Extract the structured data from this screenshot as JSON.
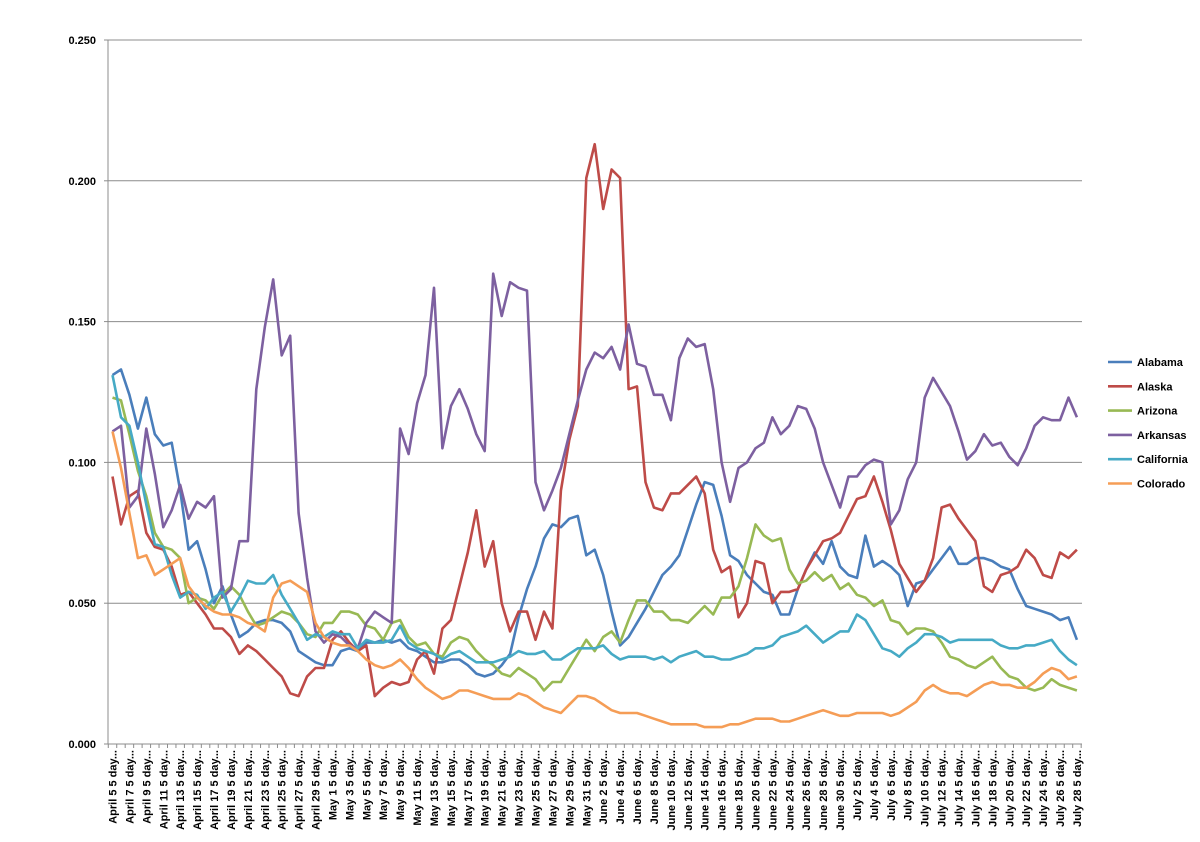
{
  "chart_data": {
    "type": "line",
    "title": "",
    "xlabel": "",
    "ylabel": "",
    "ylim": [
      0,
      0.25
    ],
    "y_ticks": [
      "0.000",
      "0.050",
      "0.100",
      "0.150",
      "0.200",
      "0.250"
    ],
    "grid": "horizontal",
    "legend_position": "right",
    "x_tick_labels": [
      "April 5 5 day...",
      "April 7 5 day...",
      "April 9 5 day...",
      "April 11 5 day...",
      "April 13 5 day...",
      "April 15 5 day...",
      "April 17 5 day...",
      "April 19 5 day...",
      "April 21 5 day...",
      "April 23 5 day...",
      "April 25 5 day...",
      "April 27 5 day...",
      "April 29 5 day...",
      "May 1 5 day...",
      "May 3 5 day...",
      "May 5 5 day...",
      "May 7 5 day...",
      "May 9 5 day...",
      "May 11 5 day...",
      "May 13 5 day...",
      "May 15 5 day...",
      "May 17 5 day...",
      "May 19 5 day...",
      "May 21 5 day...",
      "May 23 5 day...",
      "May 25 5 day...",
      "May 27 5 day...",
      "May 29 5 day...",
      "May 31 5 day...",
      "June 2 5 day...",
      "June 4 5 day...",
      "June 6 5 day...",
      "June 8 5 day...",
      "June 10 5 day...",
      "June 12 5 day...",
      "June 14 5 day...",
      "June 16 5 day...",
      "June 18 5 day...",
      "June 20 5 day...",
      "June 22 5 day...",
      "June 24 5 day...",
      "June 26 5 day...",
      "June 28 5 day...",
      "June 30 5 day...",
      "July 2 5 day...",
      "July 4 5 day...",
      "July 6 5 day...",
      "July 8 5 day...",
      "July 10 5 day...",
      "July 12 5 day...",
      "July 14 5 day...",
      "July 16 5 day...",
      "July 18 5 day...",
      "July 20 5 day...",
      "July 22 5 day...",
      "July 24 5 day...",
      "July 26 5 day...",
      "July 28 5 day..."
    ],
    "series": [
      {
        "name": "Alabama",
        "color": "#4a7ebb",
        "values": [
          0.131,
          0.133,
          0.124,
          0.112,
          0.123,
          0.11,
          0.106,
          0.107,
          0.09,
          0.069,
          0.072,
          0.062,
          0.05,
          0.056,
          0.046,
          0.038,
          0.04,
          0.043,
          0.044,
          0.044,
          0.043,
          0.04,
          0.033,
          0.031,
          0.029,
          0.028,
          0.028,
          0.033,
          0.034,
          0.033,
          0.036,
          0.036,
          0.037,
          0.036,
          0.037,
          0.034,
          0.033,
          0.031,
          0.029,
          0.029,
          0.03,
          0.03,
          0.028,
          0.025,
          0.024,
          0.025,
          0.028,
          0.032,
          0.045,
          0.055,
          0.063,
          0.073,
          0.078,
          0.077,
          0.08,
          0.081,
          0.067,
          0.069,
          0.06,
          0.047,
          0.035,
          0.038,
          0.043,
          0.048,
          0.054,
          0.06,
          0.063,
          0.067,
          0.076,
          0.085,
          0.093,
          0.092,
          0.081,
          0.067,
          0.065,
          0.06,
          0.057,
          0.054,
          0.053,
          0.046,
          0.046,
          0.055,
          0.062,
          0.068,
          0.064,
          0.072,
          0.063,
          0.06,
          0.059,
          0.074,
          0.063,
          0.065,
          0.063,
          0.06,
          0.049,
          0.057,
          0.058,
          0.062,
          0.066,
          0.07,
          0.064,
          0.064,
          0.066,
          0.066,
          0.065,
          0.063,
          0.062,
          0.055,
          0.049,
          0.048,
          0.047,
          0.046,
          0.044,
          0.045,
          0.037
        ]
      },
      {
        "name": "Alaska",
        "color": "#be4b48",
        "values": [
          0.095,
          0.078,
          0.088,
          0.09,
          0.075,
          0.07,
          0.069,
          0.063,
          0.053,
          0.054,
          0.05,
          0.046,
          0.041,
          0.041,
          0.038,
          0.032,
          0.035,
          0.033,
          0.03,
          0.027,
          0.024,
          0.018,
          0.017,
          0.024,
          0.027,
          0.027,
          0.037,
          0.04,
          0.036,
          0.033,
          0.035,
          0.017,
          0.02,
          0.022,
          0.021,
          0.022,
          0.03,
          0.033,
          0.025,
          0.041,
          0.044,
          0.056,
          0.068,
          0.083,
          0.063,
          0.072,
          0.05,
          0.04,
          0.047,
          0.047,
          0.037,
          0.047,
          0.041,
          0.09,
          0.108,
          0.12,
          0.201,
          0.213,
          0.19,
          0.204,
          0.201,
          0.126,
          0.127,
          0.093,
          0.084,
          0.083,
          0.089,
          0.089,
          0.092,
          0.095,
          0.089,
          0.069,
          0.061,
          0.063,
          0.045,
          0.05,
          0.065,
          0.064,
          0.05,
          0.054,
          0.054,
          0.055,
          0.062,
          0.067,
          0.072,
          0.073,
          0.075,
          0.081,
          0.087,
          0.088,
          0.095,
          0.086,
          0.076,
          0.064,
          0.059,
          0.054,
          0.058,
          0.066,
          0.084,
          0.085,
          0.08,
          0.076,
          0.072,
          0.056,
          0.054,
          0.06,
          0.061,
          0.063,
          0.069,
          0.066,
          0.06,
          0.059,
          0.068,
          0.066,
          0.069
        ]
      },
      {
        "name": "Arizona",
        "color": "#98b954",
        "values": [
          0.123,
          0.122,
          0.11,
          0.097,
          0.088,
          0.075,
          0.07,
          0.069,
          0.066,
          0.05,
          0.052,
          0.051,
          0.048,
          0.053,
          0.056,
          0.053,
          0.047,
          0.042,
          0.043,
          0.045,
          0.047,
          0.046,
          0.043,
          0.039,
          0.038,
          0.043,
          0.043,
          0.047,
          0.047,
          0.046,
          0.042,
          0.041,
          0.037,
          0.043,
          0.044,
          0.038,
          0.035,
          0.036,
          0.032,
          0.031,
          0.036,
          0.038,
          0.037,
          0.033,
          0.03,
          0.028,
          0.025,
          0.024,
          0.027,
          0.025,
          0.023,
          0.019,
          0.022,
          0.022,
          0.027,
          0.032,
          0.037,
          0.033,
          0.038,
          0.04,
          0.036,
          0.044,
          0.051,
          0.051,
          0.047,
          0.047,
          0.044,
          0.044,
          0.043,
          0.046,
          0.049,
          0.046,
          0.052,
          0.052,
          0.056,
          0.066,
          0.078,
          0.074,
          0.072,
          0.073,
          0.062,
          0.057,
          0.058,
          0.061,
          0.058,
          0.06,
          0.055,
          0.057,
          0.053,
          0.052,
          0.049,
          0.051,
          0.044,
          0.043,
          0.039,
          0.041,
          0.041,
          0.04,
          0.036,
          0.031,
          0.03,
          0.028,
          0.027,
          0.029,
          0.031,
          0.027,
          0.024,
          0.023,
          0.02,
          0.019,
          0.02,
          0.023,
          0.021,
          0.02,
          0.019
        ]
      },
      {
        "name": "Arkansas",
        "color": "#7d60a0",
        "values": [
          0.111,
          0.113,
          0.084,
          0.088,
          0.112,
          0.096,
          0.077,
          0.083,
          0.092,
          0.08,
          0.086,
          0.084,
          0.088,
          0.052,
          0.055,
          0.072,
          0.072,
          0.126,
          0.148,
          0.165,
          0.138,
          0.145,
          0.082,
          0.059,
          0.04,
          0.036,
          0.039,
          0.038,
          0.035,
          0.034,
          0.043,
          0.047,
          0.045,
          0.043,
          0.112,
          0.103,
          0.121,
          0.131,
          0.162,
          0.105,
          0.12,
          0.126,
          0.119,
          0.11,
          0.104,
          0.167,
          0.152,
          0.164,
          0.162,
          0.161,
          0.093,
          0.083,
          0.09,
          0.098,
          0.11,
          0.122,
          0.133,
          0.139,
          0.137,
          0.141,
          0.133,
          0.149,
          0.135,
          0.134,
          0.124,
          0.124,
          0.115,
          0.137,
          0.144,
          0.141,
          0.142,
          0.126,
          0.1,
          0.086,
          0.098,
          0.1,
          0.105,
          0.107,
          0.116,
          0.11,
          0.113,
          0.12,
          0.119,
          0.112,
          0.1,
          0.092,
          0.084,
          0.095,
          0.095,
          0.099,
          0.101,
          0.1,
          0.078,
          0.083,
          0.094,
          0.1,
          0.123,
          0.13,
          0.125,
          0.12,
          0.111,
          0.101,
          0.104,
          0.11,
          0.106,
          0.107,
          0.102,
          0.099,
          0.105,
          0.113,
          0.116,
          0.115,
          0.115,
          0.123,
          0.116
        ]
      },
      {
        "name": "California",
        "color": "#46aac5",
        "values": [
          0.131,
          0.116,
          0.113,
          0.1,
          0.085,
          0.071,
          0.07,
          0.06,
          0.052,
          0.054,
          0.053,
          0.048,
          0.052,
          0.054,
          0.047,
          0.052,
          0.058,
          0.057,
          0.057,
          0.06,
          0.053,
          0.048,
          0.043,
          0.037,
          0.039,
          0.038,
          0.04,
          0.039,
          0.039,
          0.034,
          0.037,
          0.036,
          0.036,
          0.037,
          0.042,
          0.036,
          0.034,
          0.033,
          0.032,
          0.03,
          0.032,
          0.033,
          0.031,
          0.029,
          0.029,
          0.029,
          0.03,
          0.031,
          0.033,
          0.032,
          0.032,
          0.033,
          0.03,
          0.03,
          0.032,
          0.034,
          0.034,
          0.034,
          0.035,
          0.032,
          0.03,
          0.031,
          0.031,
          0.031,
          0.03,
          0.031,
          0.029,
          0.031,
          0.032,
          0.033,
          0.031,
          0.031,
          0.03,
          0.03,
          0.031,
          0.032,
          0.034,
          0.034,
          0.035,
          0.038,
          0.039,
          0.04,
          0.042,
          0.039,
          0.036,
          0.038,
          0.04,
          0.04,
          0.046,
          0.044,
          0.039,
          0.034,
          0.033,
          0.031,
          0.034,
          0.036,
          0.039,
          0.039,
          0.038,
          0.036,
          0.037,
          0.037,
          0.037,
          0.037,
          0.037,
          0.035,
          0.034,
          0.034,
          0.035,
          0.035,
          0.036,
          0.037,
          0.033,
          0.03,
          0.028
        ]
      },
      {
        "name": "Colorado",
        "color": "#f59d56",
        "values": [
          0.111,
          0.098,
          0.082,
          0.066,
          0.067,
          0.06,
          0.062,
          0.064,
          0.066,
          0.056,
          0.052,
          0.049,
          0.047,
          0.046,
          0.046,
          0.045,
          0.043,
          0.042,
          0.04,
          0.052,
          0.057,
          0.058,
          0.056,
          0.054,
          0.043,
          0.038,
          0.036,
          0.035,
          0.035,
          0.033,
          0.03,
          0.028,
          0.027,
          0.028,
          0.03,
          0.027,
          0.023,
          0.02,
          0.018,
          0.016,
          0.017,
          0.019,
          0.019,
          0.018,
          0.017,
          0.016,
          0.016,
          0.016,
          0.018,
          0.017,
          0.015,
          0.013,
          0.012,
          0.011,
          0.014,
          0.017,
          0.017,
          0.016,
          0.014,
          0.012,
          0.011,
          0.011,
          0.011,
          0.01,
          0.009,
          0.008,
          0.007,
          0.007,
          0.007,
          0.007,
          0.006,
          0.006,
          0.006,
          0.007,
          0.007,
          0.008,
          0.009,
          0.009,
          0.009,
          0.008,
          0.008,
          0.009,
          0.01,
          0.011,
          0.012,
          0.011,
          0.01,
          0.01,
          0.011,
          0.011,
          0.011,
          0.011,
          0.01,
          0.011,
          0.013,
          0.015,
          0.019,
          0.021,
          0.019,
          0.018,
          0.018,
          0.017,
          0.019,
          0.021,
          0.022,
          0.021,
          0.021,
          0.02,
          0.02,
          0.022,
          0.025,
          0.027,
          0.026,
          0.023,
          0.024
        ]
      }
    ]
  }
}
